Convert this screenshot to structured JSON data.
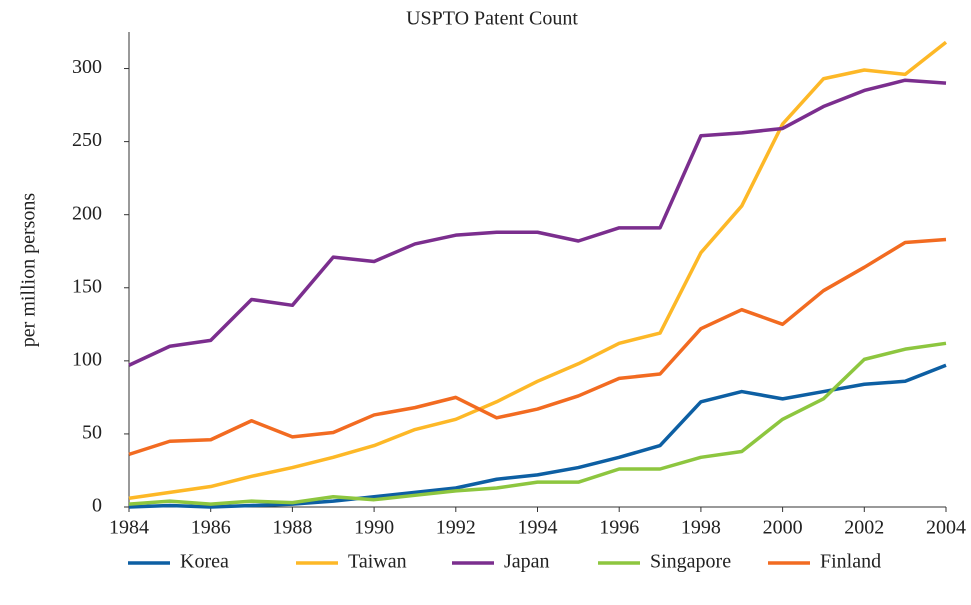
{
  "chart_data": {
    "type": "line",
    "title": "USPTO Patent Count",
    "y_label": "per million persons",
    "x": [
      1984,
      1985,
      1986,
      1987,
      1988,
      1989,
      1990,
      1991,
      1992,
      1993,
      1994,
      1995,
      1996,
      1997,
      1998,
      1999,
      2000,
      2001,
      2002,
      2003,
      2004
    ],
    "xlim": [
      1984,
      2004
    ],
    "xticks": [
      1984,
      1986,
      1988,
      1990,
      1992,
      1994,
      1996,
      1998,
      2000,
      2002,
      2004
    ],
    "ylim": [
      0,
      325
    ],
    "yticks": [
      0,
      50,
      100,
      150,
      200,
      250,
      300
    ],
    "grid": false,
    "legend": "bottom",
    "series": [
      {
        "name": "Korea",
        "color": "#0d5fa3",
        "values": [
          0,
          1,
          0,
          1,
          2,
          4,
          7,
          10,
          13,
          19,
          22,
          27,
          34,
          42,
          72,
          79,
          74,
          79,
          84,
          86,
          97
        ]
      },
      {
        "name": "Taiwan",
        "color": "#fdb827",
        "values": [
          6,
          10,
          14,
          21,
          27,
          34,
          42,
          53,
          60,
          72,
          86,
          98,
          112,
          119,
          174,
          206,
          262,
          293,
          299,
          296,
          318
        ]
      },
      {
        "name": "Japan",
        "color": "#7b2e8e",
        "values": [
          97,
          110,
          114,
          142,
          138,
          171,
          168,
          180,
          186,
          188,
          188,
          182,
          191,
          191,
          254,
          256,
          259,
          274,
          285,
          292,
          290
        ]
      },
      {
        "name": "Singapore",
        "color": "#8dc63f",
        "values": [
          2,
          4,
          2,
          4,
          3,
          7,
          5,
          8,
          11,
          13,
          17,
          17,
          26,
          26,
          34,
          38,
          60,
          74,
          101,
          108,
          112
        ]
      },
      {
        "name": "Finland",
        "color": "#f26b21",
        "values": [
          36,
          45,
          46,
          59,
          48,
          51,
          63,
          68,
          75,
          61,
          67,
          76,
          88,
          91,
          122,
          135,
          125,
          148,
          164,
          181,
          183
        ]
      }
    ]
  }
}
